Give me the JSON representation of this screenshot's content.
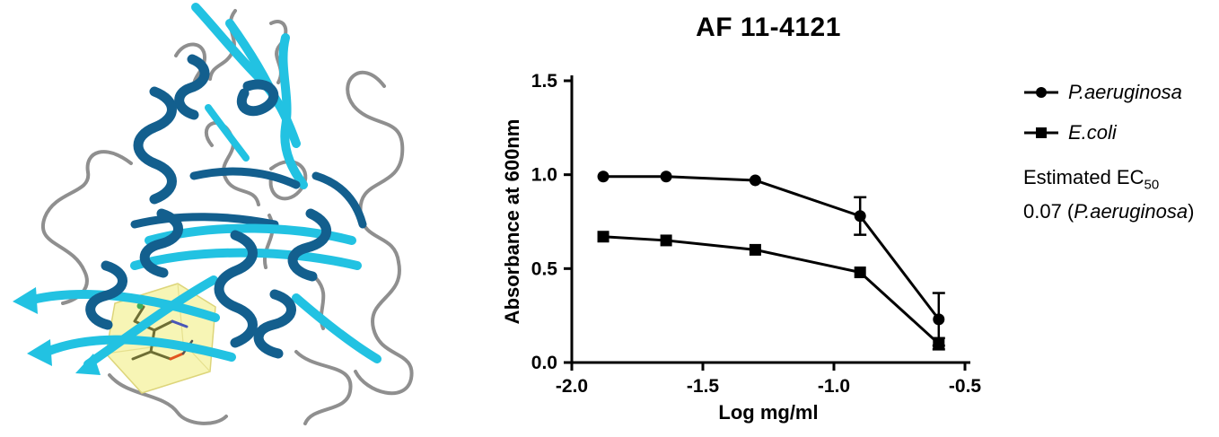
{
  "figure": {
    "title": "AF 11-4121"
  },
  "protein_panel": {
    "content": "protein ribbon structure with ligand binding site highlighted by translucent yellow box",
    "colors": {
      "beta_strand": "#22c2e2",
      "alpha_helix": "#135f8e",
      "loop": "#8f8f8f",
      "binding_site_box": "#f5f2a2"
    }
  },
  "chart_data": {
    "type": "line",
    "title": "AF 11-4121",
    "xlabel": "Log mg/ml",
    "ylabel": "Absorbance at 600nm",
    "xlim": [
      -2.0,
      -0.5
    ],
    "ylim": [
      0.0,
      1.5
    ],
    "xticks": [
      -2.0,
      -1.5,
      -1.0,
      -0.5
    ],
    "yticks": [
      0.0,
      0.5,
      1.0,
      1.5
    ],
    "grid": false,
    "legend_position": "right",
    "line_color": "#000000",
    "x": [
      -1.88,
      -1.64,
      -1.3,
      -0.9,
      -0.6
    ],
    "series": [
      {
        "name": "P.aeruginosa",
        "marker": "circle",
        "values": [
          0.99,
          0.99,
          0.97,
          0.78,
          0.23
        ],
        "errors": [
          0,
          0,
          0,
          0.1,
          0.14
        ]
      },
      {
        "name": "E.coli",
        "marker": "square",
        "values": [
          0.67,
          0.65,
          0.6,
          0.48,
          0.1
        ],
        "errors": [
          0,
          0,
          0,
          0,
          0.03
        ]
      }
    ]
  },
  "legend": {
    "ec50_prefix": "Estimated EC",
    "ec50_subscript": "50",
    "ec50_value_open": "0.07 (",
    "ec50_organism": "P.aeruginosa",
    "ec50_close": ")"
  }
}
